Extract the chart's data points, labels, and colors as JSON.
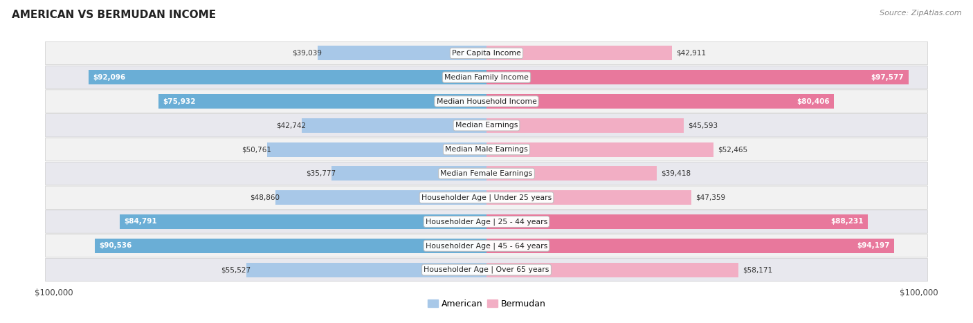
{
  "title": "AMERICAN VS BERMUDAN INCOME",
  "source": "Source: ZipAtlas.com",
  "max_value": 100000,
  "categories": [
    "Per Capita Income",
    "Median Family Income",
    "Median Household Income",
    "Median Earnings",
    "Median Male Earnings",
    "Median Female Earnings",
    "Householder Age | Under 25 years",
    "Householder Age | 25 - 44 years",
    "Householder Age | 45 - 64 years",
    "Householder Age | Over 65 years"
  ],
  "american_values": [
    39039,
    92096,
    75932,
    42742,
    50761,
    35777,
    48860,
    84791,
    90536,
    55527
  ],
  "bermudan_values": [
    42911,
    97577,
    80406,
    45593,
    52465,
    39418,
    47359,
    88231,
    94197,
    58171
  ],
  "american_labels": [
    "$39,039",
    "$92,096",
    "$75,932",
    "$42,742",
    "$50,761",
    "$35,777",
    "$48,860",
    "$84,791",
    "$90,536",
    "$55,527"
  ],
  "bermudan_labels": [
    "$42,911",
    "$97,577",
    "$80,406",
    "$45,593",
    "$52,465",
    "$39,418",
    "$47,359",
    "$88,231",
    "$94,197",
    "$58,171"
  ],
  "american_color_light": "#a8c8e8",
  "american_color_dark": "#6aaed6",
  "bermudan_color_light": "#f2aec4",
  "bermudan_color_dark": "#e8789c",
  "bar_height": 0.6,
  "inside_label_threshold": 70000,
  "xlabel_left": "$100,000",
  "xlabel_right": "$100,000",
  "legend_american": "American",
  "legend_bermudan": "Bermudan"
}
